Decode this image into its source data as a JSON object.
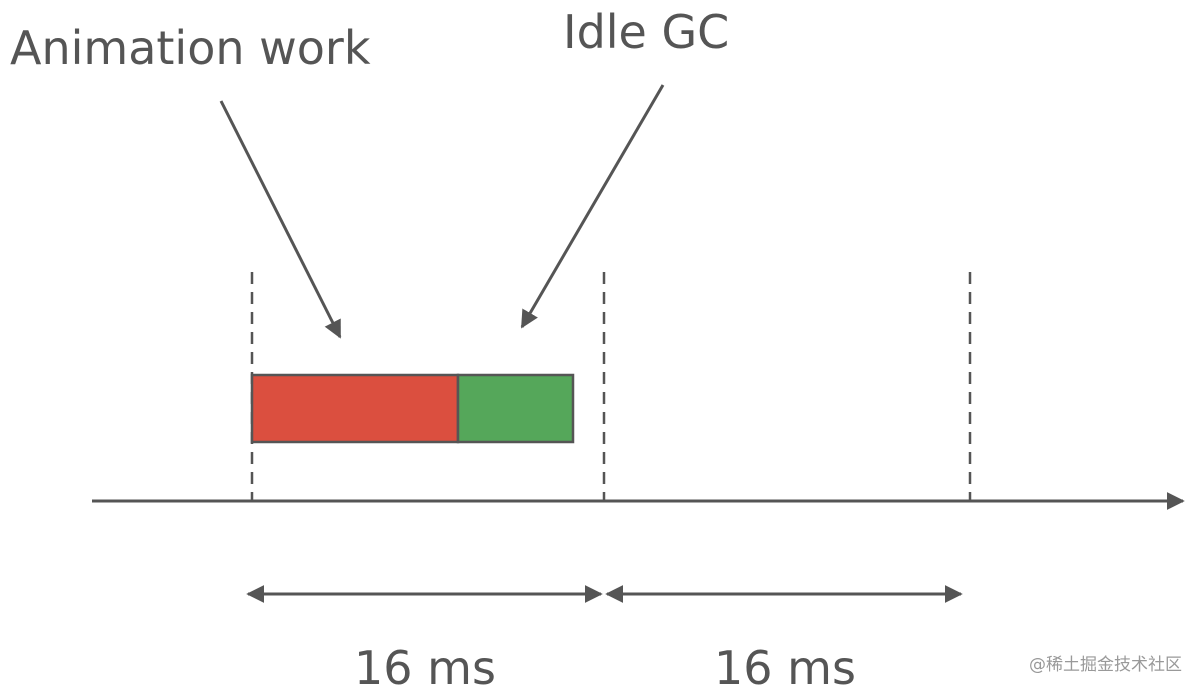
{
  "labels": {
    "animation": "Animation work",
    "idle_gc": "Idle GC"
  },
  "intervals": [
    "16 ms",
    "16 ms"
  ],
  "watermark": "@稀土掘金技术社区"
}
